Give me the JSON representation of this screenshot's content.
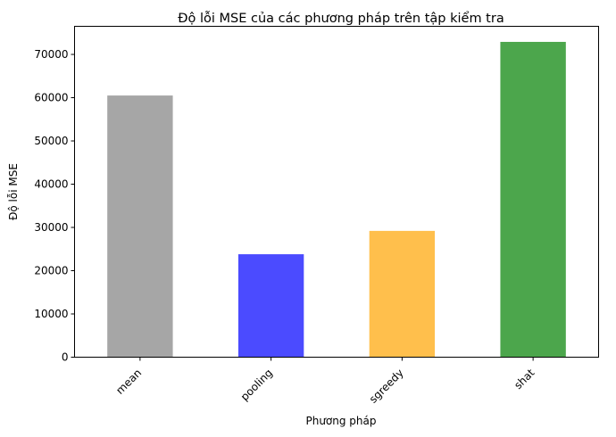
{
  "chart_data": {
    "type": "bar",
    "title": "Độ lỗi MSE của các phương pháp trên tập kiểm tra",
    "xlabel": "Phương pháp",
    "ylabel": "Độ lỗi MSE",
    "categories": [
      "mean",
      "pooling",
      "sgreedy",
      "shat"
    ],
    "values": [
      60500,
      23800,
      29200,
      72900
    ],
    "colors": [
      "#a6a6a6",
      "#4b4bff",
      "#ffbf4c",
      "#4ca64c"
    ],
    "ylim": [
      0,
      76500
    ],
    "yticks": [
      0,
      10000,
      20000,
      30000,
      40000,
      50000,
      60000,
      70000
    ],
    "ytick_labels": [
      "0",
      "10000",
      "20000",
      "30000",
      "40000",
      "50000",
      "60000",
      "70000"
    ],
    "xtick_rotation": 45,
    "grid": false,
    "legend": "none"
  }
}
